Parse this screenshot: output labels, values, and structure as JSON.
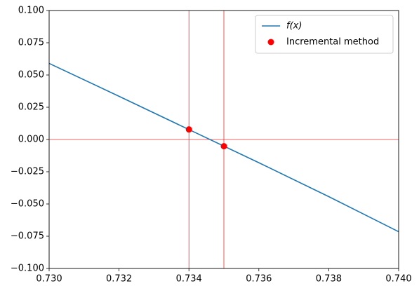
{
  "chart_data": {
    "type": "line",
    "series": [
      {
        "name": "f(x)",
        "kind": "line",
        "color": "#1f77b4",
        "x": [
          0.73,
          0.732,
          0.734,
          0.736,
          0.738,
          0.74
        ],
        "values": [
          0.059,
          0.0335,
          0.0077,
          -0.018,
          -0.0443,
          -0.0715
        ]
      },
      {
        "name": "Incremental method",
        "kind": "scatter",
        "color": "#ff0000",
        "x": [
          0.734,
          0.735
        ],
        "values": [
          0.0078,
          -0.0052
        ]
      }
    ],
    "vlines": [
      0.734,
      0.735
    ],
    "hlines": [
      0
    ],
    "ref_line_color": "#e03030",
    "xlim": [
      0.73,
      0.74
    ],
    "ylim": [
      -0.1,
      0.1
    ],
    "xticks": [
      {
        "value": 0.73,
        "label": "0.730"
      },
      {
        "value": 0.732,
        "label": "0.732"
      },
      {
        "value": 0.734,
        "label": "0.734"
      },
      {
        "value": 0.736,
        "label": "0.736"
      },
      {
        "value": 0.738,
        "label": "0.738"
      },
      {
        "value": 0.74,
        "label": "0.740"
      }
    ],
    "yticks": [
      {
        "value": -0.1,
        "label": "−0.100"
      },
      {
        "value": -0.075,
        "label": "−0.075"
      },
      {
        "value": -0.05,
        "label": "−0.050"
      },
      {
        "value": -0.025,
        "label": "−0.025"
      },
      {
        "value": 0,
        "label": "0.000"
      },
      {
        "value": 0.025,
        "label": "0.025"
      },
      {
        "value": 0.05,
        "label": "0.050"
      },
      {
        "value": 0.075,
        "label": "0.075"
      },
      {
        "value": 0.1,
        "label": "0.100"
      }
    ],
    "legend": "upper right"
  }
}
